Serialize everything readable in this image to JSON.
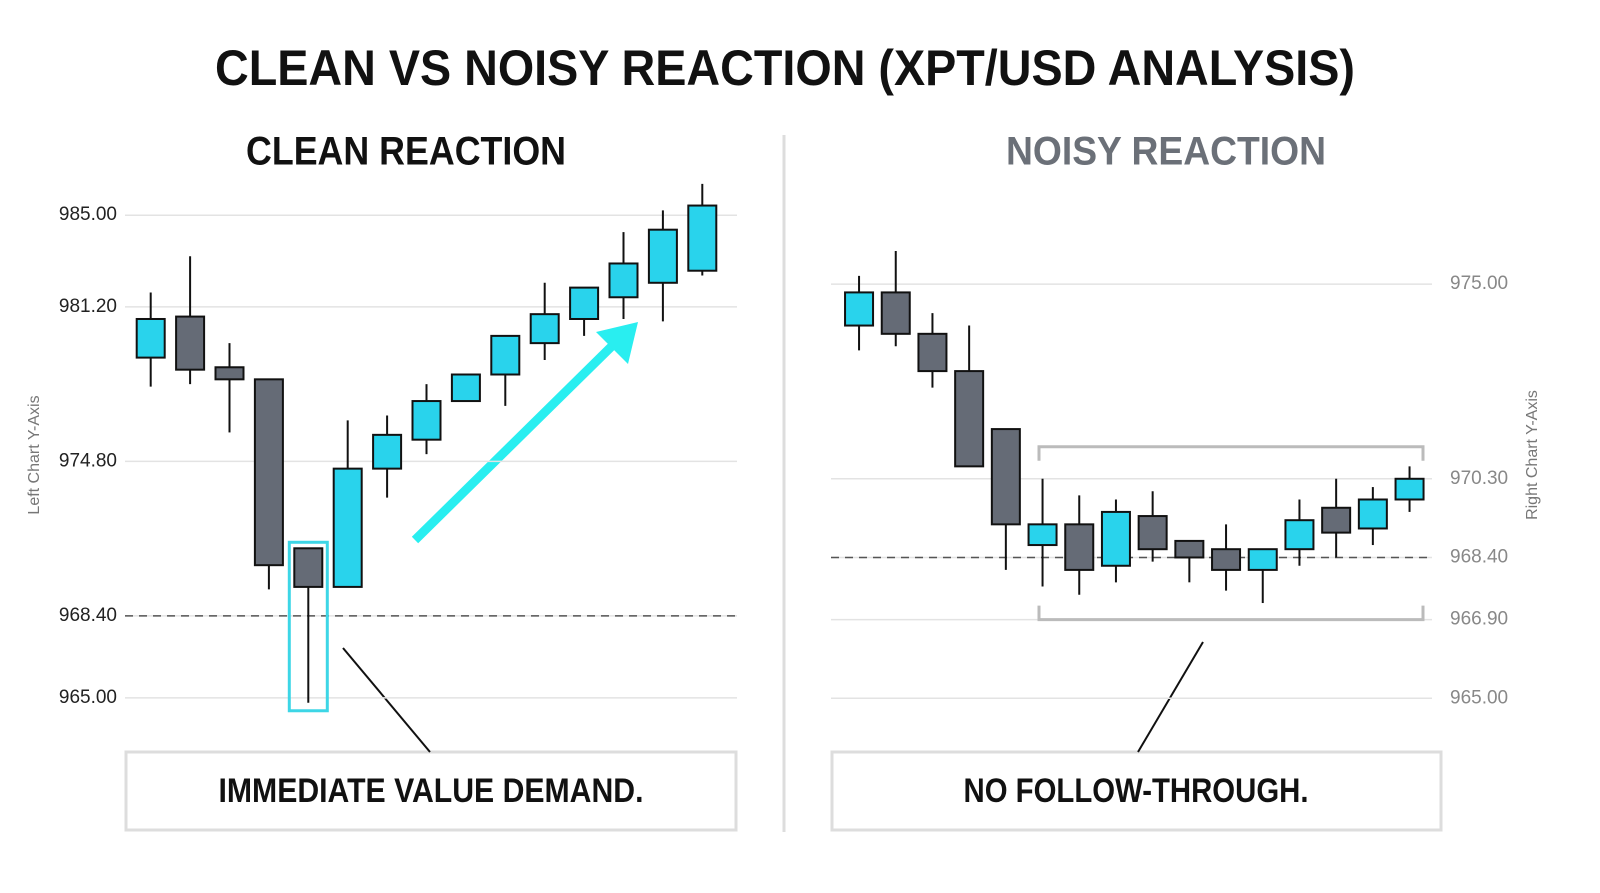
{
  "title": "CLEAN VS NOISY REACTION (XPT/USD ANALYSIS)",
  "chart_data": [
    {
      "type": "candlestick",
      "title": "CLEAN REACTION",
      "y_label": "Left Chart Y-Axis",
      "annotation": "IMMEDIATE VALUE DEMAND.",
      "up_color": "#29d3ec",
      "down_color": "#656b76",
      "open": [
        979.1,
        980.8,
        978.7,
        978.2,
        971.2,
        969.6,
        974.5,
        975.7,
        977.3,
        978.4,
        979.7,
        980.7,
        981.6,
        982.2,
        982.7
      ],
      "high": [
        981.8,
        983.3,
        979.7,
        978.2,
        971.2,
        976.5,
        976.7,
        978.0,
        978.4,
        980.0,
        982.2,
        982.0,
        984.3,
        985.2,
        986.3
      ],
      "low": [
        977.9,
        978.0,
        976.0,
        969.5,
        964.8,
        969.6,
        973.3,
        975.1,
        977.3,
        977.1,
        979.0,
        980.0,
        980.7,
        980.6,
        982.5
      ],
      "close": [
        980.7,
        978.6,
        978.2,
        970.5,
        969.6,
        974.5,
        975.9,
        977.3,
        978.4,
        980.0,
        980.9,
        982.0,
        983.0,
        984.4,
        985.4
      ],
      "ylim": [
        964.5,
        986.5
      ],
      "yticks": [
        {
          "value": 985,
          "label": "985.00"
        },
        {
          "value": 981.2,
          "label": "981.20"
        },
        {
          "value": 974.8,
          "label": "974.80"
        },
        {
          "value": 968.4,
          "label": "968.40"
        },
        {
          "value": 965,
          "label": "965.00"
        }
      ],
      "reference_line": 968.4,
      "grid": true
    },
    {
      "type": "candlestick",
      "title": "NOISY REACTION",
      "y_label": "Right Chart Y-Axis",
      "annotation": "NO FOLLOW-THROUGH.",
      "up_color": "#29d3ec",
      "down_color": "#656b76",
      "open": [
        974.0,
        974.8,
        973.8,
        972.9,
        971.5,
        968.7,
        969.2,
        968.2,
        969.4,
        968.8,
        968.6,
        968.1,
        968.6,
        969.6,
        969.1,
        969.8
      ],
      "high": [
        975.2,
        975.8,
        974.3,
        974.0,
        971.5,
        970.3,
        969.9,
        969.8,
        970.0,
        968.8,
        969.2,
        968.6,
        969.8,
        970.3,
        970.1,
        970.6
      ],
      "low": [
        973.4,
        973.5,
        972.5,
        970.6,
        968.1,
        967.7,
        967.5,
        967.8,
        968.3,
        967.8,
        967.6,
        967.3,
        968.2,
        968.4,
        968.7,
        969.5
      ],
      "close": [
        974.8,
        973.8,
        972.9,
        970.6,
        969.2,
        969.2,
        968.1,
        969.5,
        968.6,
        968.4,
        968.1,
        968.6,
        969.3,
        969.0,
        969.8,
        970.3
      ],
      "ylim": [
        964.5,
        976.5
      ],
      "yticks": [
        {
          "value": 975,
          "label": "975.00"
        },
        {
          "value": 970.3,
          "label": "970.30"
        },
        {
          "value": 968.4,
          "label": "968.40"
        },
        {
          "value": 966.9,
          "label": "966.90"
        },
        {
          "value": 965,
          "label": "965.00"
        }
      ],
      "reference_line": 968.4,
      "grid": true
    }
  ]
}
